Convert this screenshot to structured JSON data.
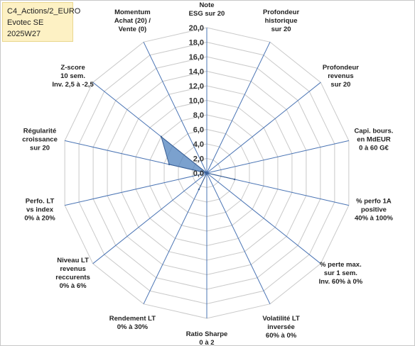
{
  "header_box": {
    "line1": "C4_Actions/2_EURO",
    "line2": "Evotec SE",
    "line3": "2025W27"
  },
  "chart_data": {
    "type": "radar",
    "title": "",
    "rmin": 0,
    "rmax": 20,
    "tick_step": 2,
    "tick_labels": [
      "0,0",
      "2,0",
      "4,0",
      "6,0",
      "8,0",
      "10,0",
      "12,0",
      "14,0",
      "16,0",
      "18,0",
      "20,0"
    ],
    "categories": [
      [
        "Note",
        "ESG sur 20"
      ],
      [
        "Profondeur",
        "historique",
        "sur 20"
      ],
      [
        "Profondeur",
        "revenus",
        "sur 20"
      ],
      [
        "Capi. bours.",
        "en MdEUR",
        "0 à 60 G€"
      ],
      [
        "% perfo 1A",
        "positive",
        "40% à 100%"
      ],
      [
        "% perte max.",
        "sur 1 sem.",
        "Inv. 60% à 0%"
      ],
      [
        "Volatilité LT",
        "inversée",
        "60% à 0%"
      ],
      [
        "Ratio Sharpe",
        "0 à 2"
      ],
      [
        "Rendement LT",
        "0% à 30%"
      ],
      [
        "Niveau LT",
        "revenus",
        "reccurents",
        "0% à 6%"
      ],
      [
        "Perfo. LT",
        "vs index",
        "0% à 20%"
      ],
      [
        "Régularité",
        "croissance",
        "sur 20"
      ],
      [
        "Z-score",
        "10 sem.",
        "Inv. 2,5 à -2,5"
      ],
      [
        "Momentum",
        "Achat (20) /",
        "Vente (0)"
      ]
    ],
    "series": [
      {
        "values": [
          0,
          0,
          0,
          0,
          3.9,
          0,
          0,
          0,
          2.5,
          0,
          0,
          5.3,
          8.0,
          0
        ],
        "color": "#4f81bd"
      }
    ],
    "grid": true,
    "legend": "none"
  }
}
